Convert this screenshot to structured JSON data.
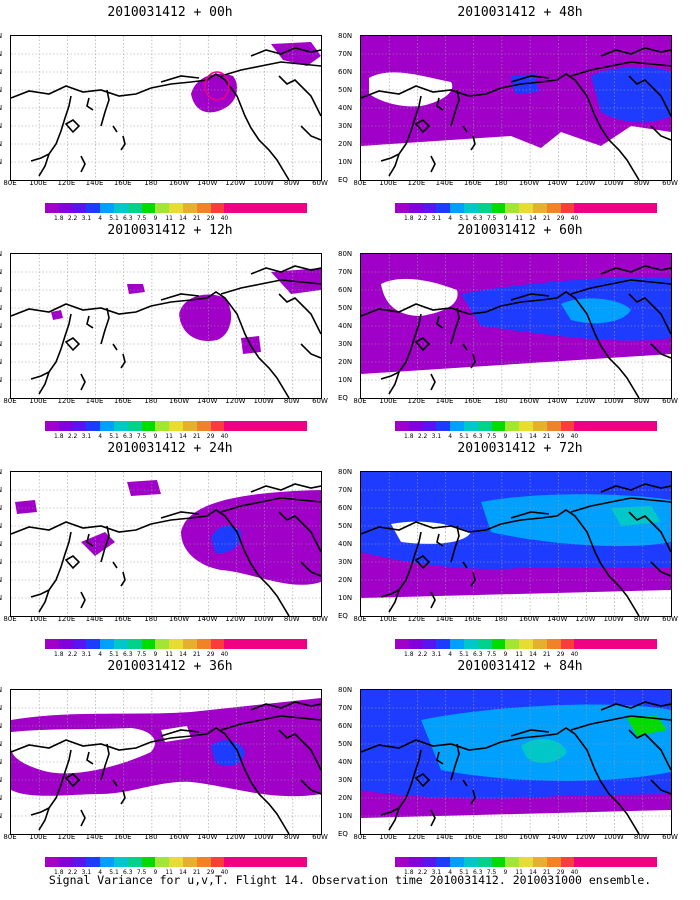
{
  "figure": {
    "caption": "Signal Variance for u,v,T. Flight 14. Observation time 2010031412. 2010031000 ensemble."
  },
  "axes": {
    "lat_labels": [
      "80N",
      "70N",
      "60N",
      "50N",
      "40N",
      "30N",
      "20N",
      "10N",
      "EQ"
    ],
    "lon_labels": [
      "80E",
      "100E",
      "120E",
      "140E",
      "160E",
      "180",
      "160W",
      "140W",
      "120W",
      "100W",
      "80W",
      "60W"
    ]
  },
  "colorbar": {
    "labels": [
      "1.8",
      "2.2",
      "3.1",
      "4",
      "5.1",
      "6.3",
      "7.5",
      "9",
      "11",
      "14",
      "21",
      "29",
      "40"
    ],
    "colors": [
      "#a000c8",
      "#8200dc",
      "#1e3cff",
      "#00a0ff",
      "#00c8c8",
      "#00d28c",
      "#00dc00",
      "#a0e632",
      "#e6dc32",
      "#e6af2d",
      "#f08228",
      "#fa3c3c",
      "#f00082"
    ]
  },
  "panels": [
    {
      "title": "2010031412 + 00h",
      "level": 0
    },
    {
      "title": "2010031412 + 12h",
      "level": 1
    },
    {
      "title": "2010031412 + 24h",
      "level": 2
    },
    {
      "title": "2010031412 + 36h",
      "level": 3
    },
    {
      "title": "2010031412 + 48h",
      "level": 4
    },
    {
      "title": "2010031412 + 60h",
      "level": 5
    },
    {
      "title": "2010031412 + 72h",
      "level": 6
    },
    {
      "title": "2010031412 + 84h",
      "level": 7
    }
  ]
}
